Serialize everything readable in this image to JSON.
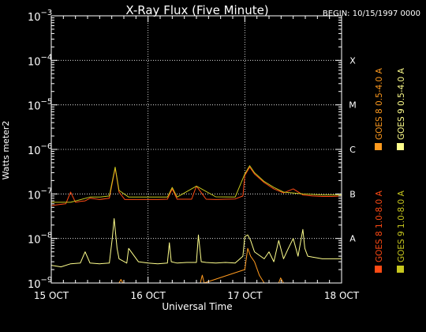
{
  "title": "X-Ray Flux (Five Minute)",
  "begin_label": "BEGIN: 10/15/1997 0000",
  "chart_data": {
    "type": "line",
    "title": "X-Ray Flux (Five Minute)",
    "xlabel": "Universal Time",
    "ylabel": "Watts meter2",
    "x_unit": "days after 15 OCT 1997 00:00 UT",
    "xlim": [
      0,
      3
    ],
    "x_ticks": [
      {
        "x": 0,
        "label": "15 OCT"
      },
      {
        "x": 1,
        "label": "16 OCT"
      },
      {
        "x": 2,
        "label": "17 OCT"
      },
      {
        "x": 3,
        "label": "18 OCT"
      }
    ],
    "yscale": "log",
    "ylim": [
      1e-09,
      0.001
    ],
    "y_tick_exponents": [
      -9,
      -8,
      -7,
      -6,
      -5,
      -4,
      -3
    ],
    "flare_classes": [
      {
        "label": "A",
        "value": 1e-08
      },
      {
        "label": "B",
        "value": 1e-07
      },
      {
        "label": "C",
        "value": 1e-06
      },
      {
        "label": "M",
        "value": 1e-05
      },
      {
        "label": "X",
        "value": 0.0001
      }
    ],
    "legend": [
      {
        "label": "GOES 8 1.0-8.0 A",
        "color": "#ff4a14"
      },
      {
        "label": "GOES 8 0.5-4.0 A",
        "color": "#ff9a1e"
      },
      {
        "label": "GOES 9 1.0-8.0 A",
        "color": "#c8c81e"
      },
      {
        "label": "GOES 9 0.5-4.0 A",
        "color": "#ffff8c"
      }
    ],
    "series": [
      {
        "name": "GOES 8 1.0-8.0 A",
        "color": "#ff4a14",
        "x": [
          0,
          0.08,
          0.15,
          0.2,
          0.25,
          0.3,
          0.35,
          0.4,
          0.5,
          0.6,
          0.66,
          0.7,
          0.76,
          0.85,
          0.95,
          1.0,
          1.1,
          1.2,
          1.25,
          1.3,
          1.45,
          1.5,
          1.6,
          1.7,
          1.8,
          1.9,
          1.98,
          2.0,
          2.05,
          2.1,
          2.2,
          2.3,
          2.4,
          2.5,
          2.6,
          2.7,
          2.8,
          2.9,
          3.0
        ],
        "y": [
          5.5e-08,
          5.8e-08,
          6e-08,
          1.1e-07,
          6.5e-08,
          6.8e-08,
          7e-08,
          8e-08,
          7.5e-08,
          8e-08,
          3.8e-07,
          1.1e-07,
          7.5e-08,
          7.5e-08,
          7.5e-08,
          7.5e-08,
          7.5e-08,
          7.6e-08,
          1.3e-07,
          7.6e-08,
          7.6e-08,
          1.5e-07,
          7.6e-08,
          7.5e-08,
          7.6e-08,
          7.7e-08,
          9e-08,
          2.6e-07,
          4e-07,
          2.8e-07,
          1.8e-07,
          1.3e-07,
          1.05e-07,
          1.3e-07,
          9.5e-08,
          9e-08,
          8.8e-08,
          8.8e-08,
          9e-08
        ]
      },
      {
        "name": "GOES 8 0.5-4.0 A",
        "color": "#ff9a1e",
        "x": [
          0.7,
          0.72,
          0.74,
          1.54,
          1.56,
          1.58,
          2.0,
          2.03,
          2.06,
          2.1,
          2.15,
          2.2,
          2.35,
          2.37,
          2.4
        ],
        "y": [
          1e-09,
          1.2e-09,
          1e-09,
          1e-09,
          1.5e-09,
          1e-09,
          2e-09,
          6e-09,
          4e-09,
          3e-09,
          1.5e-09,
          1e-09,
          1e-09,
          1.3e-09,
          1e-09
        ]
      },
      {
        "name": "GOES 9 1.0-8.0 A",
        "color": "#c8c81e",
        "x": [
          0,
          0.2,
          0.4,
          0.5,
          0.6,
          0.66,
          0.7,
          0.8,
          1.0,
          1.2,
          1.25,
          1.3,
          1.5,
          1.7,
          1.9,
          2.0,
          2.05,
          2.1,
          2.2,
          2.3,
          2.4,
          2.6,
          2.8,
          3.0
        ],
        "y": [
          6.5e-08,
          6.5e-08,
          8.5e-08,
          8.5e-08,
          9e-08,
          4e-07,
          1.2e-07,
          8.5e-08,
          8.5e-08,
          8.5e-08,
          1.4e-07,
          8.5e-08,
          1.5e-07,
          8.6e-08,
          8.5e-08,
          2.8e-07,
          4.3e-07,
          3e-07,
          1.9e-07,
          1.4e-07,
          1.1e-07,
          1e-07,
          9.5e-08,
          9.5e-08
        ]
      },
      {
        "name": "GOES 9 0.5-4.0 A",
        "color": "#ffff8c",
        "x": [
          0,
          0.1,
          0.2,
          0.3,
          0.35,
          0.4,
          0.5,
          0.6,
          0.63,
          0.65,
          0.68,
          0.7,
          0.78,
          0.8,
          0.9,
          1.0,
          1.1,
          1.2,
          1.22,
          1.24,
          1.3,
          1.4,
          1.5,
          1.52,
          1.55,
          1.6,
          1.7,
          1.8,
          1.9,
          1.98,
          2.0,
          2.03,
          2.06,
          2.1,
          2.2,
          2.25,
          2.3,
          2.35,
          2.4,
          2.45,
          2.5,
          2.55,
          2.6,
          2.62,
          2.65,
          2.7,
          2.8,
          2.9,
          3.0
        ],
        "y": [
          2.5e-09,
          2.3e-09,
          2.7e-09,
          2.8e-09,
          5e-09,
          2.8e-09,
          2.7e-09,
          2.8e-09,
          1e-08,
          2.8e-08,
          6e-09,
          3.5e-09,
          2.8e-09,
          6e-09,
          3e-09,
          2.8e-09,
          2.7e-09,
          2.8e-09,
          8e-09,
          3e-09,
          2.8e-09,
          2.9e-09,
          2.9e-09,
          1.2e-08,
          3e-09,
          2.9e-09,
          2.8e-09,
          2.9e-09,
          2.8e-09,
          4e-09,
          1.1e-08,
          1.2e-08,
          9e-09,
          5e-09,
          3.5e-09,
          5e-09,
          3e-09,
          9e-09,
          3.5e-09,
          6e-09,
          1e-08,
          4e-09,
          1.6e-08,
          6e-09,
          4e-09,
          3.8e-09,
          3.5e-09,
          3.5e-09,
          3.5e-09
        ]
      }
    ]
  }
}
